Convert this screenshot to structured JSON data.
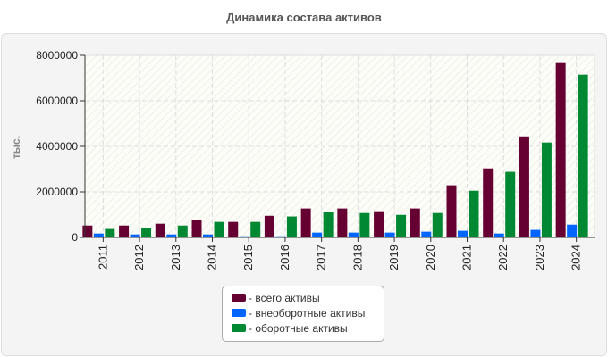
{
  "chart_data": {
    "type": "bar",
    "title": "Динамика состава активов",
    "xlabel": "",
    "ylabel": "тыс.",
    "ylim": [
      0,
      8000000
    ],
    "yticks": [
      0,
      2000000,
      4000000,
      6000000,
      8000000
    ],
    "ytick_labels": [
      "0",
      "2000000",
      "4000000",
      "6000000",
      "8000000"
    ],
    "grid": true,
    "legend_position": "bottom",
    "categories": [
      "2011",
      "2012",
      "2013",
      "2014",
      "2015",
      "2016",
      "2017",
      "2018",
      "2019",
      "2020",
      "2021",
      "2022",
      "2023",
      "2024"
    ],
    "series": [
      {
        "name": "- всего активы",
        "color": "#660033",
        "values": [
          520000,
          520000,
          600000,
          760000,
          680000,
          950000,
          1270000,
          1270000,
          1150000,
          1270000,
          2290000,
          3030000,
          4440000,
          7660000
        ]
      },
      {
        "name": "- внеоборотные активы",
        "color": "#0066ff",
        "values": [
          170000,
          130000,
          130000,
          130000,
          50000,
          50000,
          210000,
          210000,
          210000,
          250000,
          290000,
          170000,
          330000,
          560000
        ]
      },
      {
        "name": "- оборотные активы",
        "color": "#008833",
        "values": [
          370000,
          410000,
          520000,
          680000,
          680000,
          920000,
          1110000,
          1070000,
          990000,
          1070000,
          2050000,
          2880000,
          4170000,
          7150000
        ]
      }
    ]
  }
}
